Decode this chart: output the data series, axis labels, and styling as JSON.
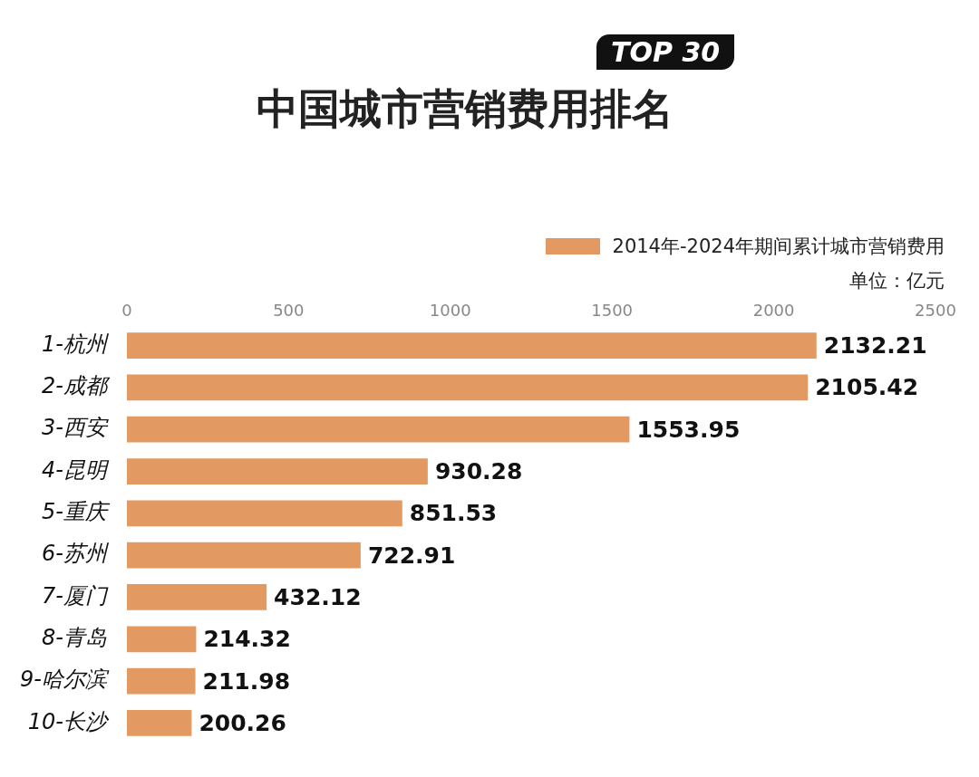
{
  "chart_data": {
    "type": "bar",
    "orientation": "horizontal",
    "title": "中国城市营销费用排名",
    "subtitle": "TOP 30",
    "categories": [
      "1-杭州",
      "2-成都",
      "3-西安",
      "4-昆明",
      "5-重庆",
      "6-苏州",
      "7-厦门",
      "8-青岛",
      "9-哈尔滨",
      "10-长沙"
    ],
    "series": [
      {
        "name": "2014年-2024年期间累计城市营销费用",
        "color": "#e39a62",
        "values": [
          2132.21,
          2105.42,
          1553.95,
          930.28,
          851.53,
          722.91,
          432.12,
          214.32,
          211.98,
          200.26
        ]
      }
    ],
    "xlim": [
      0,
      2500
    ],
    "xticks": [
      0,
      500,
      1000,
      1500,
      2000,
      2500
    ],
    "data_labels": true,
    "legend": "top right",
    "grid": false,
    "annotations": [
      "单位：亿元"
    ]
  }
}
